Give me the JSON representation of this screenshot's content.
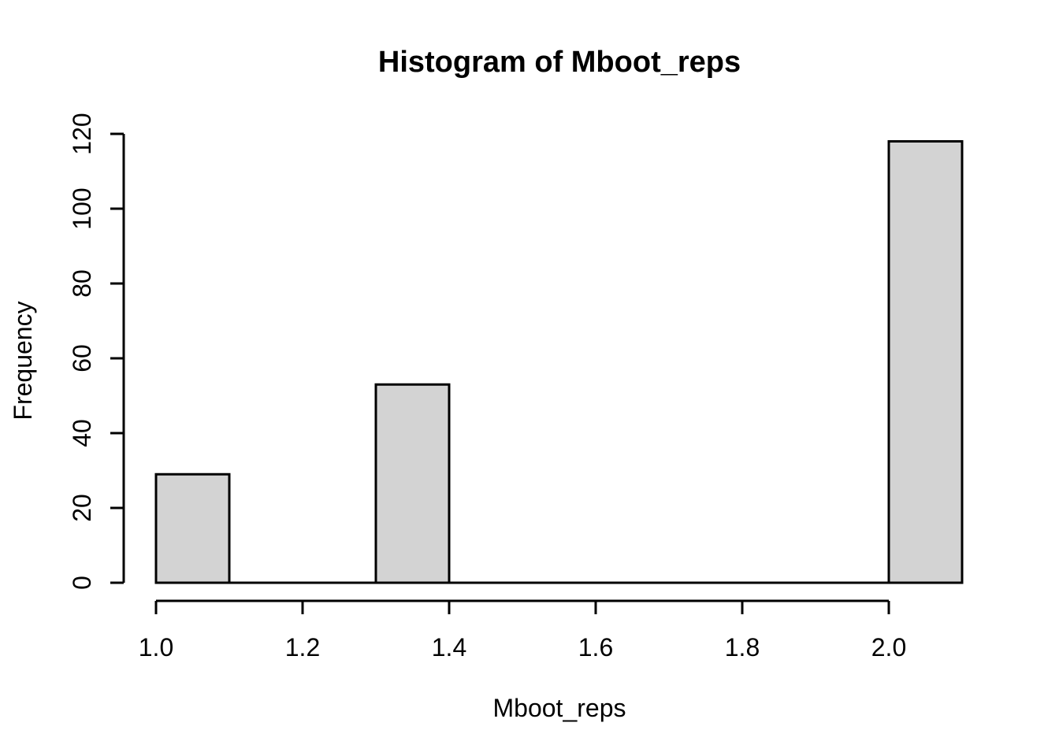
{
  "chart_data": {
    "type": "bar",
    "variant": "histogram",
    "title": "Histogram of Mboot_reps",
    "xlabel": "Mboot_reps",
    "ylabel": "Frequency",
    "bins": [
      {
        "x0": 1.0,
        "x1": 1.1,
        "count": 29
      },
      {
        "x0": 1.3,
        "x1": 1.4,
        "count": 53
      },
      {
        "x0": 2.0,
        "x1": 2.1,
        "count": 118
      }
    ],
    "x_ticks": [
      1.0,
      1.2,
      1.4,
      1.6,
      1.8,
      2.0
    ],
    "x_tick_labels": [
      "1.0",
      "1.2",
      "1.4",
      "1.6",
      "1.8",
      "2.0"
    ],
    "y_ticks": [
      0,
      20,
      40,
      60,
      80,
      100,
      120
    ],
    "y_tick_labels": [
      "0",
      "20",
      "40",
      "60",
      "80",
      "100",
      "120"
    ],
    "xlim": [
      1.0,
      2.1
    ],
    "ylim": [
      0,
      120
    ],
    "grid": false,
    "legend": null,
    "colors": {
      "bar_fill": "#d3d3d3",
      "bar_stroke": "#000000",
      "axis": "#000000",
      "text": "#000000",
      "background": "#ffffff"
    }
  }
}
